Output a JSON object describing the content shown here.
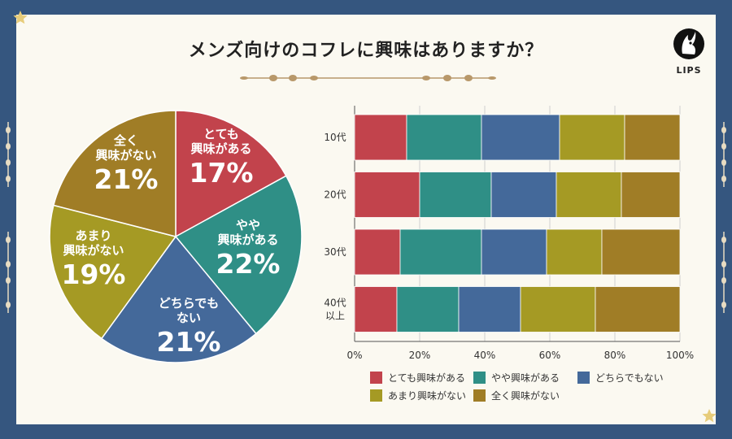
{
  "title": "メンズ向けのコフレに興味はありますか？",
  "logo_text": "LIPS",
  "colors": {
    "background": "#35567f",
    "card": "#fbf9f1",
    "red": "#c2434c",
    "teal": "#2f8f86",
    "blue": "#44699a",
    "olive": "#a59a24",
    "brown": "#a07d26",
    "ornament": "#b8986a"
  },
  "chart_data": [
    {
      "type": "pie",
      "categories": [
        "とても興味がある",
        "やや興味がある",
        "どちらでもない",
        "あまり興味がない",
        "全く興味がない"
      ],
      "values": [
        17,
        22,
        21,
        19,
        21
      ],
      "slice_labels": [
        {
          "lines": [
            "とても",
            "興味がある"
          ],
          "pct": "17%"
        },
        {
          "lines": [
            "やや",
            "興味がある"
          ],
          "pct": "22%"
        },
        {
          "lines": [
            "どちらでも",
            "ない"
          ],
          "pct": "21%"
        },
        {
          "lines": [
            "あまり",
            "興味がない"
          ],
          "pct": "19%"
        },
        {
          "lines": [
            "全く",
            "興味がない"
          ],
          "pct": "21%"
        }
      ]
    },
    {
      "type": "bar",
      "orientation": "horizontal",
      "stacked": true,
      "categories": [
        [
          "10代"
        ],
        [
          "20代"
        ],
        [
          "30代"
        ],
        [
          "40代",
          "以上"
        ]
      ],
      "series": [
        {
          "name": "とても興味がある",
          "values": [
            16,
            20,
            14,
            13
          ]
        },
        {
          "name": "やや興味がある",
          "values": [
            23,
            22,
            25,
            19
          ]
        },
        {
          "name": "どちらでもない",
          "values": [
            24,
            20,
            20,
            19
          ]
        },
        {
          "name": "あまり興味がない",
          "values": [
            20,
            20,
            17,
            23
          ]
        },
        {
          "name": "全く興味がない",
          "values": [
            17,
            18,
            24,
            26
          ]
        }
      ],
      "xlim": [
        0,
        100
      ],
      "xticks": [
        "0%",
        "20%",
        "40%",
        "60%",
        "80%",
        "100%"
      ],
      "grid": true,
      "legend": "bottom"
    }
  ]
}
